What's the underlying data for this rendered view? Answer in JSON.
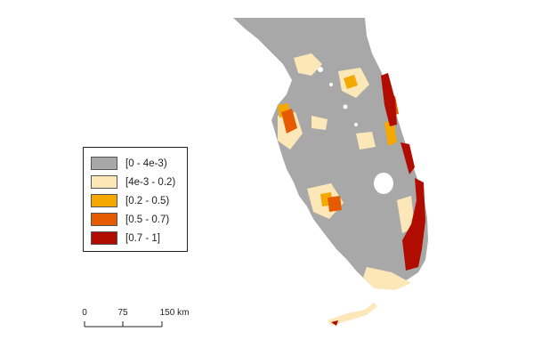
{
  "map": {
    "colors": {
      "background": "#ffffff",
      "land_class_0": "#a8a8a8",
      "class_1": "#fce7b8",
      "class_2": "#f5a800",
      "class_3": "#e65a00",
      "class_4": "#b00d00"
    }
  },
  "legend": {
    "items": [
      {
        "label": "[0 - 4e-3)",
        "color": "#a8a8a8"
      },
      {
        "label": "[4e-3 - 0.2)",
        "color": "#fce7b8"
      },
      {
        "label": "[0.2 - 0.5)",
        "color": "#f5a800"
      },
      {
        "label": "[0.5 - 0.7)",
        "color": "#e65a00"
      },
      {
        "label": "[0.7 - 1]",
        "color": "#b00d00"
      }
    ]
  },
  "scale_bar": {
    "ticks": [
      "0",
      "75",
      "150 km"
    ]
  }
}
